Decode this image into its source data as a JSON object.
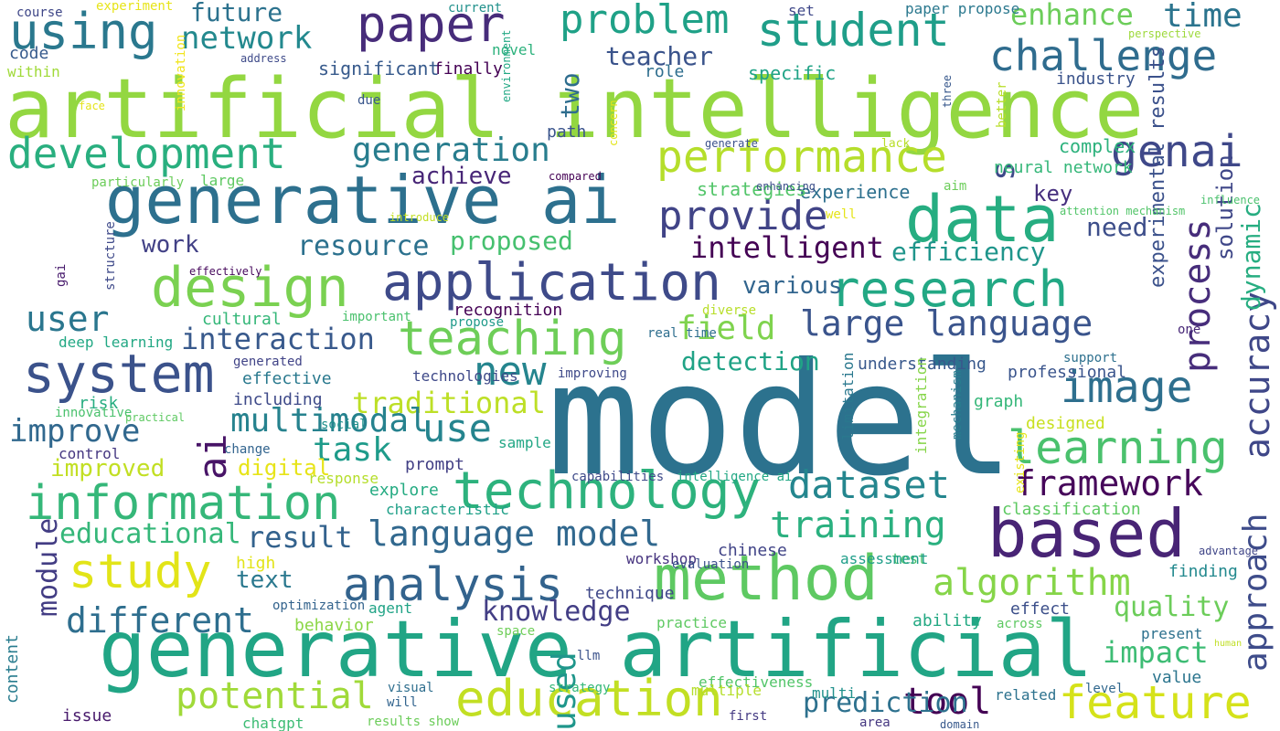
{
  "words": [
    {
      "text": "model",
      "color": "#2c728e"
    },
    {
      "text": "artificial intelligence",
      "color": "#93d741"
    },
    {
      "text": "generative artificial",
      "color": "#21a585"
    },
    {
      "text": "generative ai",
      "color": "#2d708e"
    },
    {
      "text": "based",
      "color": "#482475"
    },
    {
      "text": "data",
      "color": "#26ad81"
    },
    {
      "text": "method",
      "color": "#5ec962"
    },
    {
      "text": "technology",
      "color": "#2db27d"
    },
    {
      "text": "system",
      "color": "#3b528b"
    },
    {
      "text": "information",
      "color": "#35b779"
    },
    {
      "text": "design",
      "color": "#7ad151"
    },
    {
      "text": "application",
      "color": "#3e4a89"
    },
    {
      "text": "research",
      "color": "#22a884"
    },
    {
      "text": "education",
      "color": "#c2df23"
    },
    {
      "text": "feature",
      "color": "#d5e21a"
    },
    {
      "text": "study",
      "color": "#e2e418"
    },
    {
      "text": "analysis",
      "color": "#33638d"
    },
    {
      "text": "student",
      "color": "#1f9e89"
    },
    {
      "text": "teaching",
      "color": "#6ece58"
    },
    {
      "text": "learning",
      "color": "#4ac16d"
    },
    {
      "text": "paper",
      "color": "#472c7a"
    },
    {
      "text": "using",
      "color": "#2a788e"
    },
    {
      "text": "challenge",
      "color": "#2f6c8e"
    },
    {
      "text": "development",
      "color": "#29af7f"
    },
    {
      "text": "performance",
      "color": "#b5de2b"
    },
    {
      "text": "image",
      "color": "#2e6f8e"
    },
    {
      "text": "problem",
      "color": "#1fa187"
    },
    {
      "text": "language model",
      "color": "#31688e"
    },
    {
      "text": "potential",
      "color": "#a0da39"
    },
    {
      "text": "provide",
      "color": "#414487"
    },
    {
      "text": "use",
      "color": "#25848e"
    },
    {
      "text": "framework",
      "color": "#46075a"
    },
    {
      "text": "algorithm",
      "color": "#86d549"
    },
    {
      "text": "training",
      "color": "#2ab07f"
    },
    {
      "text": "tool",
      "color": "#440154"
    },
    {
      "text": "dataset",
      "color": "#24868e"
    },
    {
      "text": "genai",
      "color": "#3f4889"
    },
    {
      "text": "large language",
      "color": "#3a548c"
    },
    {
      "text": "generation",
      "color": "#287d8e"
    },
    {
      "text": "new",
      "color": "#25858e"
    },
    {
      "text": "different",
      "color": "#2e6e8e"
    },
    {
      "text": "time",
      "color": "#2b748e"
    },
    {
      "text": "network",
      "color": "#23898e"
    },
    {
      "text": "approach",
      "color": "#3e4c8a"
    },
    {
      "text": "process",
      "color": "#472d7b"
    },
    {
      "text": "accuracy",
      "color": "#3f4788"
    },
    {
      "text": "knowledge",
      "color": "#433e85"
    },
    {
      "text": "improve",
      "color": "#31688e"
    },
    {
      "text": "interaction",
      "color": "#38598c"
    },
    {
      "text": "user",
      "color": "#2a768e"
    },
    {
      "text": "field",
      "color": "#7fd34e"
    },
    {
      "text": "impact",
      "color": "#3dbc74"
    },
    {
      "text": "quality",
      "color": "#6ccd5a"
    },
    {
      "text": "task",
      "color": "#1e9b8a"
    },
    {
      "text": "result",
      "color": "#33628d"
    },
    {
      "text": "educational",
      "color": "#35b779"
    },
    {
      "text": "enhance",
      "color": "#6ccd5a"
    },
    {
      "text": "traditional",
      "color": "#bddf26"
    },
    {
      "text": "intelligent",
      "color": "#440154"
    },
    {
      "text": "efficiency",
      "color": "#1f958b"
    },
    {
      "text": "human",
      "color": "#c0df25"
    },
    {
      "text": "ai",
      "color": "#481467"
    },
    {
      "text": "s",
      "color": "#3e4989"
    },
    {
      "text": "used",
      "color": "#1f968b"
    },
    {
      "text": "multimodal",
      "color": "#26828e"
    },
    {
      "text": "proposed",
      "color": "#46c06f"
    },
    {
      "text": "resource",
      "color": "#2c718e"
    },
    {
      "text": "improved",
      "color": "#c2df23"
    },
    {
      "text": "detection",
      "color": "#20a386"
    },
    {
      "text": "teacher",
      "color": "#3a538b"
    },
    {
      "text": "achieve",
      "color": "#482677"
    },
    {
      "text": "future",
      "color": "#2c728e"
    },
    {
      "text": "two",
      "color": "#2e6d8e"
    },
    {
      "text": "prediction",
      "color": "#2d718e"
    },
    {
      "text": "module",
      "color": "#433d84"
    },
    {
      "text": "text",
      "color": "#2a788e"
    },
    {
      "text": "digital",
      "color": "#e7e419"
    },
    {
      "text": "work",
      "color": "#424186"
    },
    {
      "text": "need",
      "color": "#3d4e8a"
    },
    {
      "text": "key",
      "color": "#462f7e"
    },
    {
      "text": "various",
      "color": "#32658e"
    },
    {
      "text": "dynamic",
      "color": "#27ad81"
    },
    {
      "text": "solution",
      "color": "#3f4788"
    },
    {
      "text": "experimental results",
      "color": "#3b518b"
    },
    {
      "text": "content",
      "color": "#287c8e"
    },
    {
      "text": "code",
      "color": "#375b8d"
    },
    {
      "text": "finally",
      "color": "#440154"
    },
    {
      "text": "significant",
      "color": "#375a8c"
    },
    {
      "text": "experience",
      "color": "#2d708e"
    },
    {
      "text": "neural network",
      "color": "#35b779"
    },
    {
      "text": "complex",
      "color": "#2db27d"
    },
    {
      "text": "specific",
      "color": "#20a386"
    },
    {
      "text": "role",
      "color": "#2e6e8e"
    },
    {
      "text": "path",
      "color": "#3a548c"
    },
    {
      "text": "strategies",
      "color": "#52c569"
    },
    {
      "text": "context",
      "color": "#c8e020"
    },
    {
      "text": "industry",
      "color": "#3a538b"
    },
    {
      "text": "value",
      "color": "#2b758e"
    },
    {
      "text": "present",
      "color": "#2d718e"
    },
    {
      "text": "effect",
      "color": "#3c4f8a"
    },
    {
      "text": "finding",
      "color": "#23898e"
    },
    {
      "text": "ability",
      "color": "#23a983"
    },
    {
      "text": "test",
      "color": "#4ac16d"
    },
    {
      "text": "assessment",
      "color": "#1f9e89"
    },
    {
      "text": "chinese",
      "color": "#414487"
    },
    {
      "text": "technique",
      "color": "#3f4889"
    },
    {
      "text": "practice",
      "color": "#5ec962"
    },
    {
      "text": "behavior",
      "color": "#8bd646"
    },
    {
      "text": "agent",
      "color": "#20a386"
    },
    {
      "text": "optimization",
      "color": "#33638d"
    },
    {
      "text": "prompt",
      "color": "#423f85"
    },
    {
      "text": "sample",
      "color": "#22a785"
    },
    {
      "text": "explore",
      "color": "#25ab82"
    },
    {
      "text": "characteristic",
      "color": "#1fa088"
    },
    {
      "text": "high",
      "color": "#e2e418"
    },
    {
      "text": "workshop",
      "color": "#46337f"
    },
    {
      "text": "evaluation",
      "color": "#3b518b"
    },
    {
      "text": "deep learning",
      "color": "#22a884"
    },
    {
      "text": "risk",
      "color": "#27ad81"
    },
    {
      "text": "including",
      "color": "#3e4a89"
    },
    {
      "text": "effective",
      "color": "#29798e"
    },
    {
      "text": "professional",
      "color": "#3a548c"
    },
    {
      "text": "designed",
      "color": "#c8e020"
    },
    {
      "text": "graph",
      "color": "#35b779"
    },
    {
      "text": "understanding",
      "color": "#38588c"
    },
    {
      "text": "control",
      "color": "#453781"
    },
    {
      "text": "change",
      "color": "#32648e"
    },
    {
      "text": "response",
      "color": "#b5de2b"
    },
    {
      "text": "innovative",
      "color": "#4ac16d"
    },
    {
      "text": "practical",
      "color": "#5ec962"
    },
    {
      "text": "social",
      "color": "#21918c"
    },
    {
      "text": "technologies",
      "color": "#3e4989"
    },
    {
      "text": "generated",
      "color": "#414487"
    },
    {
      "text": "improving",
      "color": "#3e4989"
    },
    {
      "text": "support",
      "color": "#2d708e"
    },
    {
      "text": "intelligence genai",
      "color": "#453882"
    },
    {
      "text": "recognition",
      "color": "#440154"
    },
    {
      "text": "propose",
      "color": "#1f9a8a"
    },
    {
      "text": "cultural",
      "color": "#35b779"
    },
    {
      "text": "important",
      "color": "#4ac16d"
    },
    {
      "text": "diverse",
      "color": "#b8de29"
    },
    {
      "text": "one",
      "color": "#482878"
    },
    {
      "text": "real time",
      "color": "#2e6e8e"
    },
    {
      "text": "integration",
      "color": "#86d549"
    },
    {
      "text": "limitation",
      "color": "#2a788e"
    },
    {
      "text": "mechanism",
      "color": "#287d8e"
    },
    {
      "text": "existing",
      "color": "#e5e419"
    },
    {
      "text": "capabilities",
      "color": "#3e4a89"
    },
    {
      "text": "intelligence ai",
      "color": "#22a884"
    },
    {
      "text": "classification",
      "color": "#5ec962"
    },
    {
      "text": "show",
      "color": "#dde318"
    },
    {
      "text": "advantage",
      "color": "#404688"
    },
    {
      "text": "across",
      "color": "#5ec962"
    },
    {
      "text": "space",
      "color": "#6ece58"
    },
    {
      "text": "llm",
      "color": "#3b528b"
    },
    {
      "text": "effectiveness",
      "color": "#52c569"
    },
    {
      "text": "multiple",
      "color": "#b5de2b"
    },
    {
      "text": "multi",
      "color": "#21918c"
    },
    {
      "text": "level",
      "color": "#31688e"
    },
    {
      "text": "related",
      "color": "#2c728e"
    },
    {
      "text": "visual",
      "color": "#2e6e8e"
    },
    {
      "text": "will",
      "color": "#32648e"
    },
    {
      "text": "strategy",
      "color": "#35b779"
    },
    {
      "text": "first",
      "color": "#443a83"
    },
    {
      "text": "area",
      "color": "#453781"
    },
    {
      "text": "domain",
      "color": "#38598c"
    },
    {
      "text": "results show",
      "color": "#6ccd5a"
    },
    {
      "text": "chatgpt",
      "color": "#3dbc74"
    },
    {
      "text": "issue",
      "color": "#481a6c"
    },
    {
      "text": "course",
      "color": "#3f4788"
    },
    {
      "text": "experiment",
      "color": "#e7e419"
    },
    {
      "text": "innovation",
      "color": "#f1e51d"
    },
    {
      "text": "current",
      "color": "#21918c"
    },
    {
      "text": "set",
      "color": "#3f4889"
    },
    {
      "text": "paper propose",
      "color": "#2a788e"
    },
    {
      "text": "perspective",
      "color": "#9dd93b"
    },
    {
      "text": "within",
      "color": "#a0da39"
    },
    {
      "text": "address",
      "color": "#3e4a89"
    },
    {
      "text": "novel",
      "color": "#2db27d"
    },
    {
      "text": "face",
      "color": "#e5e419"
    },
    {
      "text": "due",
      "color": "#39568c"
    },
    {
      "text": "environment",
      "color": "#22a884"
    },
    {
      "text": "concern",
      "color": "#e2e418"
    },
    {
      "text": "three",
      "color": "#38588c"
    },
    {
      "text": "better",
      "color": "#b8de29"
    },
    {
      "text": "particularly",
      "color": "#6ccd5a"
    },
    {
      "text": "large",
      "color": "#5ec962"
    },
    {
      "text": "compared",
      "color": "#440154"
    },
    {
      "text": "enhancing",
      "color": "#3c4f8a"
    },
    {
      "text": "aim",
      "color": "#6ccd5a"
    },
    {
      "text": "influence",
      "color": "#4ac16d"
    },
    {
      "text": "attention mechanism",
      "color": "#52c569"
    },
    {
      "text": "platform",
      "color": "#dde318"
    },
    {
      "text": "well",
      "color": "#e5e419"
    },
    {
      "text": "introduce",
      "color": "#c2df23"
    },
    {
      "text": "lack",
      "color": "#b8de29"
    },
    {
      "text": "generate",
      "color": "#3b518b"
    },
    {
      "text": "gai",
      "color": "#481b6d"
    },
    {
      "text": "structure",
      "color": "#3e4989"
    },
    {
      "text": "effectively",
      "color": "#46085c"
    }
  ]
}
